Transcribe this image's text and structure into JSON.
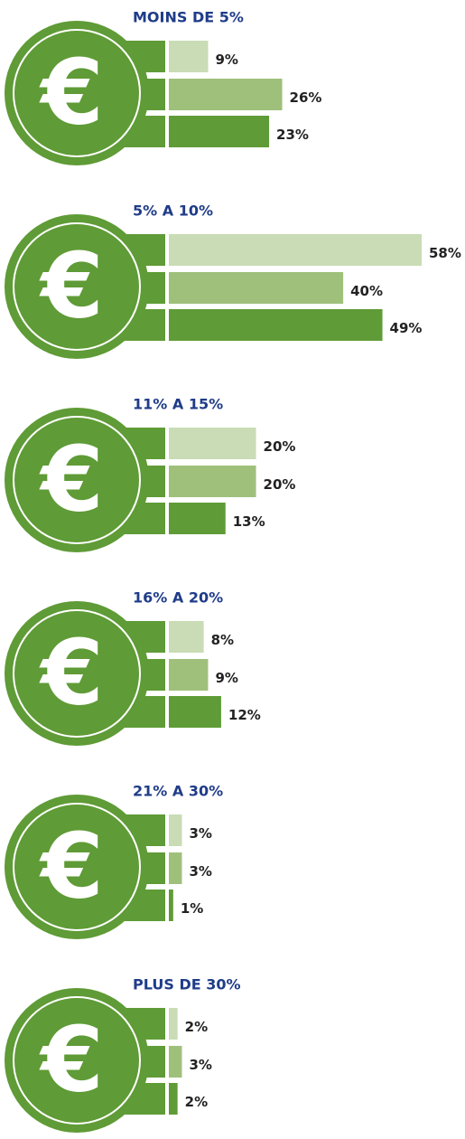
{
  "chart_data": {
    "type": "bar",
    "categories": [
      "MOINS DE 5%",
      "5% A 10%",
      "11% A 15%",
      "16% A 20%",
      "21% A 30%",
      "PLUS DE 30%"
    ],
    "series": [
      {
        "color": "#c9dcb5",
        "values": [
          9,
          58,
          20,
          8,
          3,
          2
        ],
        "value_labels": [
          "9%",
          "58%",
          "20%",
          "8%",
          "3%",
          "2%"
        ]
      },
      {
        "color": "#9fc07b",
        "values": [
          26,
          40,
          20,
          9,
          3,
          3
        ],
        "value_labels": [
          "26%",
          "40%",
          "20%",
          "9%",
          "3%",
          "3%"
        ]
      },
      {
        "color": "#5f9b36",
        "values": [
          23,
          49,
          13,
          12,
          1,
          2
        ],
        "value_labels": [
          "23%",
          "49%",
          "13%",
          "12%",
          "1%",
          "2%"
        ]
      }
    ],
    "xlim": [
      0,
      58
    ]
  }
}
